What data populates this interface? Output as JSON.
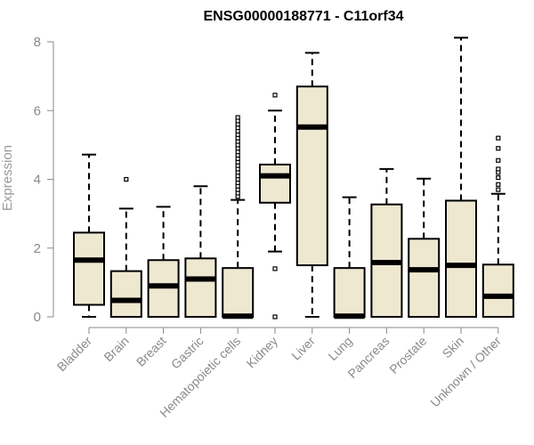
{
  "chart_data": {
    "type": "boxplot",
    "title": "ENSG00000188771 - C11orf34",
    "xlabel": "",
    "ylabel": "Expression",
    "ylim": [
      0,
      8
    ],
    "yticks": [
      0,
      2,
      4,
      6,
      8
    ],
    "colors": {
      "box_fill": "#efe8d1",
      "stroke": "#000000",
      "axis": "#8a8a8a"
    },
    "categories": [
      "Bladder",
      "Brain",
      "Breast",
      "Gastric",
      "Hematopoietic cells",
      "Kidney",
      "Liver",
      "Lung",
      "Pancreas",
      "Prostate",
      "Skin",
      "Unknown / Other"
    ],
    "series": [
      {
        "name": "Bladder",
        "whisker_low": 0.0,
        "q1": 0.35,
        "median": 1.65,
        "q3": 2.45,
        "whisker_high": 4.72,
        "outliers": []
      },
      {
        "name": "Brain",
        "whisker_low": 0.0,
        "q1": 0.0,
        "median": 0.48,
        "q3": 1.33,
        "whisker_high": 3.15,
        "outliers": [
          4.0
        ]
      },
      {
        "name": "Breast",
        "whisker_low": 0.0,
        "q1": 0.0,
        "median": 0.9,
        "q3": 1.65,
        "whisker_high": 3.2,
        "outliers": []
      },
      {
        "name": "Gastric",
        "whisker_low": 0.0,
        "q1": 0.0,
        "median": 1.1,
        "q3": 1.7,
        "whisker_high": 3.8,
        "outliers": []
      },
      {
        "name": "Hematopoietic cells",
        "whisker_low": 0.0,
        "q1": 0.0,
        "median": 0.02,
        "q3": 1.42,
        "whisker_high": 3.4,
        "outliers": [
          3.5,
          3.6,
          3.7,
          3.8,
          3.9,
          4.0,
          4.1,
          4.2,
          4.3,
          4.4,
          4.5,
          4.6,
          4.7,
          4.8,
          4.9,
          5.0,
          5.1,
          5.2,
          5.3,
          5.4,
          5.5,
          5.6,
          5.7,
          5.8
        ]
      },
      {
        "name": "Kidney",
        "whisker_low": 1.9,
        "q1": 3.32,
        "median": 4.1,
        "q3": 4.43,
        "whisker_high": 6.0,
        "outliers": [
          0.0,
          1.4,
          6.45
        ]
      },
      {
        "name": "Liver",
        "whisker_low": 0.0,
        "q1": 1.5,
        "median": 5.52,
        "q3": 6.7,
        "whisker_high": 7.68,
        "outliers": []
      },
      {
        "name": "Lung",
        "whisker_low": 0.0,
        "q1": 0.0,
        "median": 0.02,
        "q3": 1.42,
        "whisker_high": 3.48,
        "outliers": []
      },
      {
        "name": "Pancreas",
        "whisker_low": 0.0,
        "q1": 0.0,
        "median": 1.58,
        "q3": 3.27,
        "whisker_high": 4.3,
        "outliers": []
      },
      {
        "name": "Prostate",
        "whisker_low": 0.0,
        "q1": 0.0,
        "median": 1.37,
        "q3": 2.27,
        "whisker_high": 4.02,
        "outliers": []
      },
      {
        "name": "Skin",
        "whisker_low": 0.0,
        "q1": 0.0,
        "median": 1.5,
        "q3": 3.38,
        "whisker_high": 8.12,
        "outliers": []
      },
      {
        "name": "Unknown / Other",
        "whisker_low": 0.0,
        "q1": 0.0,
        "median": 0.6,
        "q3": 1.52,
        "whisker_high": 3.58,
        "outliers": [
          3.7,
          3.85,
          4.05,
          4.2,
          4.3,
          4.55,
          4.9,
          5.2
        ]
      }
    ]
  }
}
